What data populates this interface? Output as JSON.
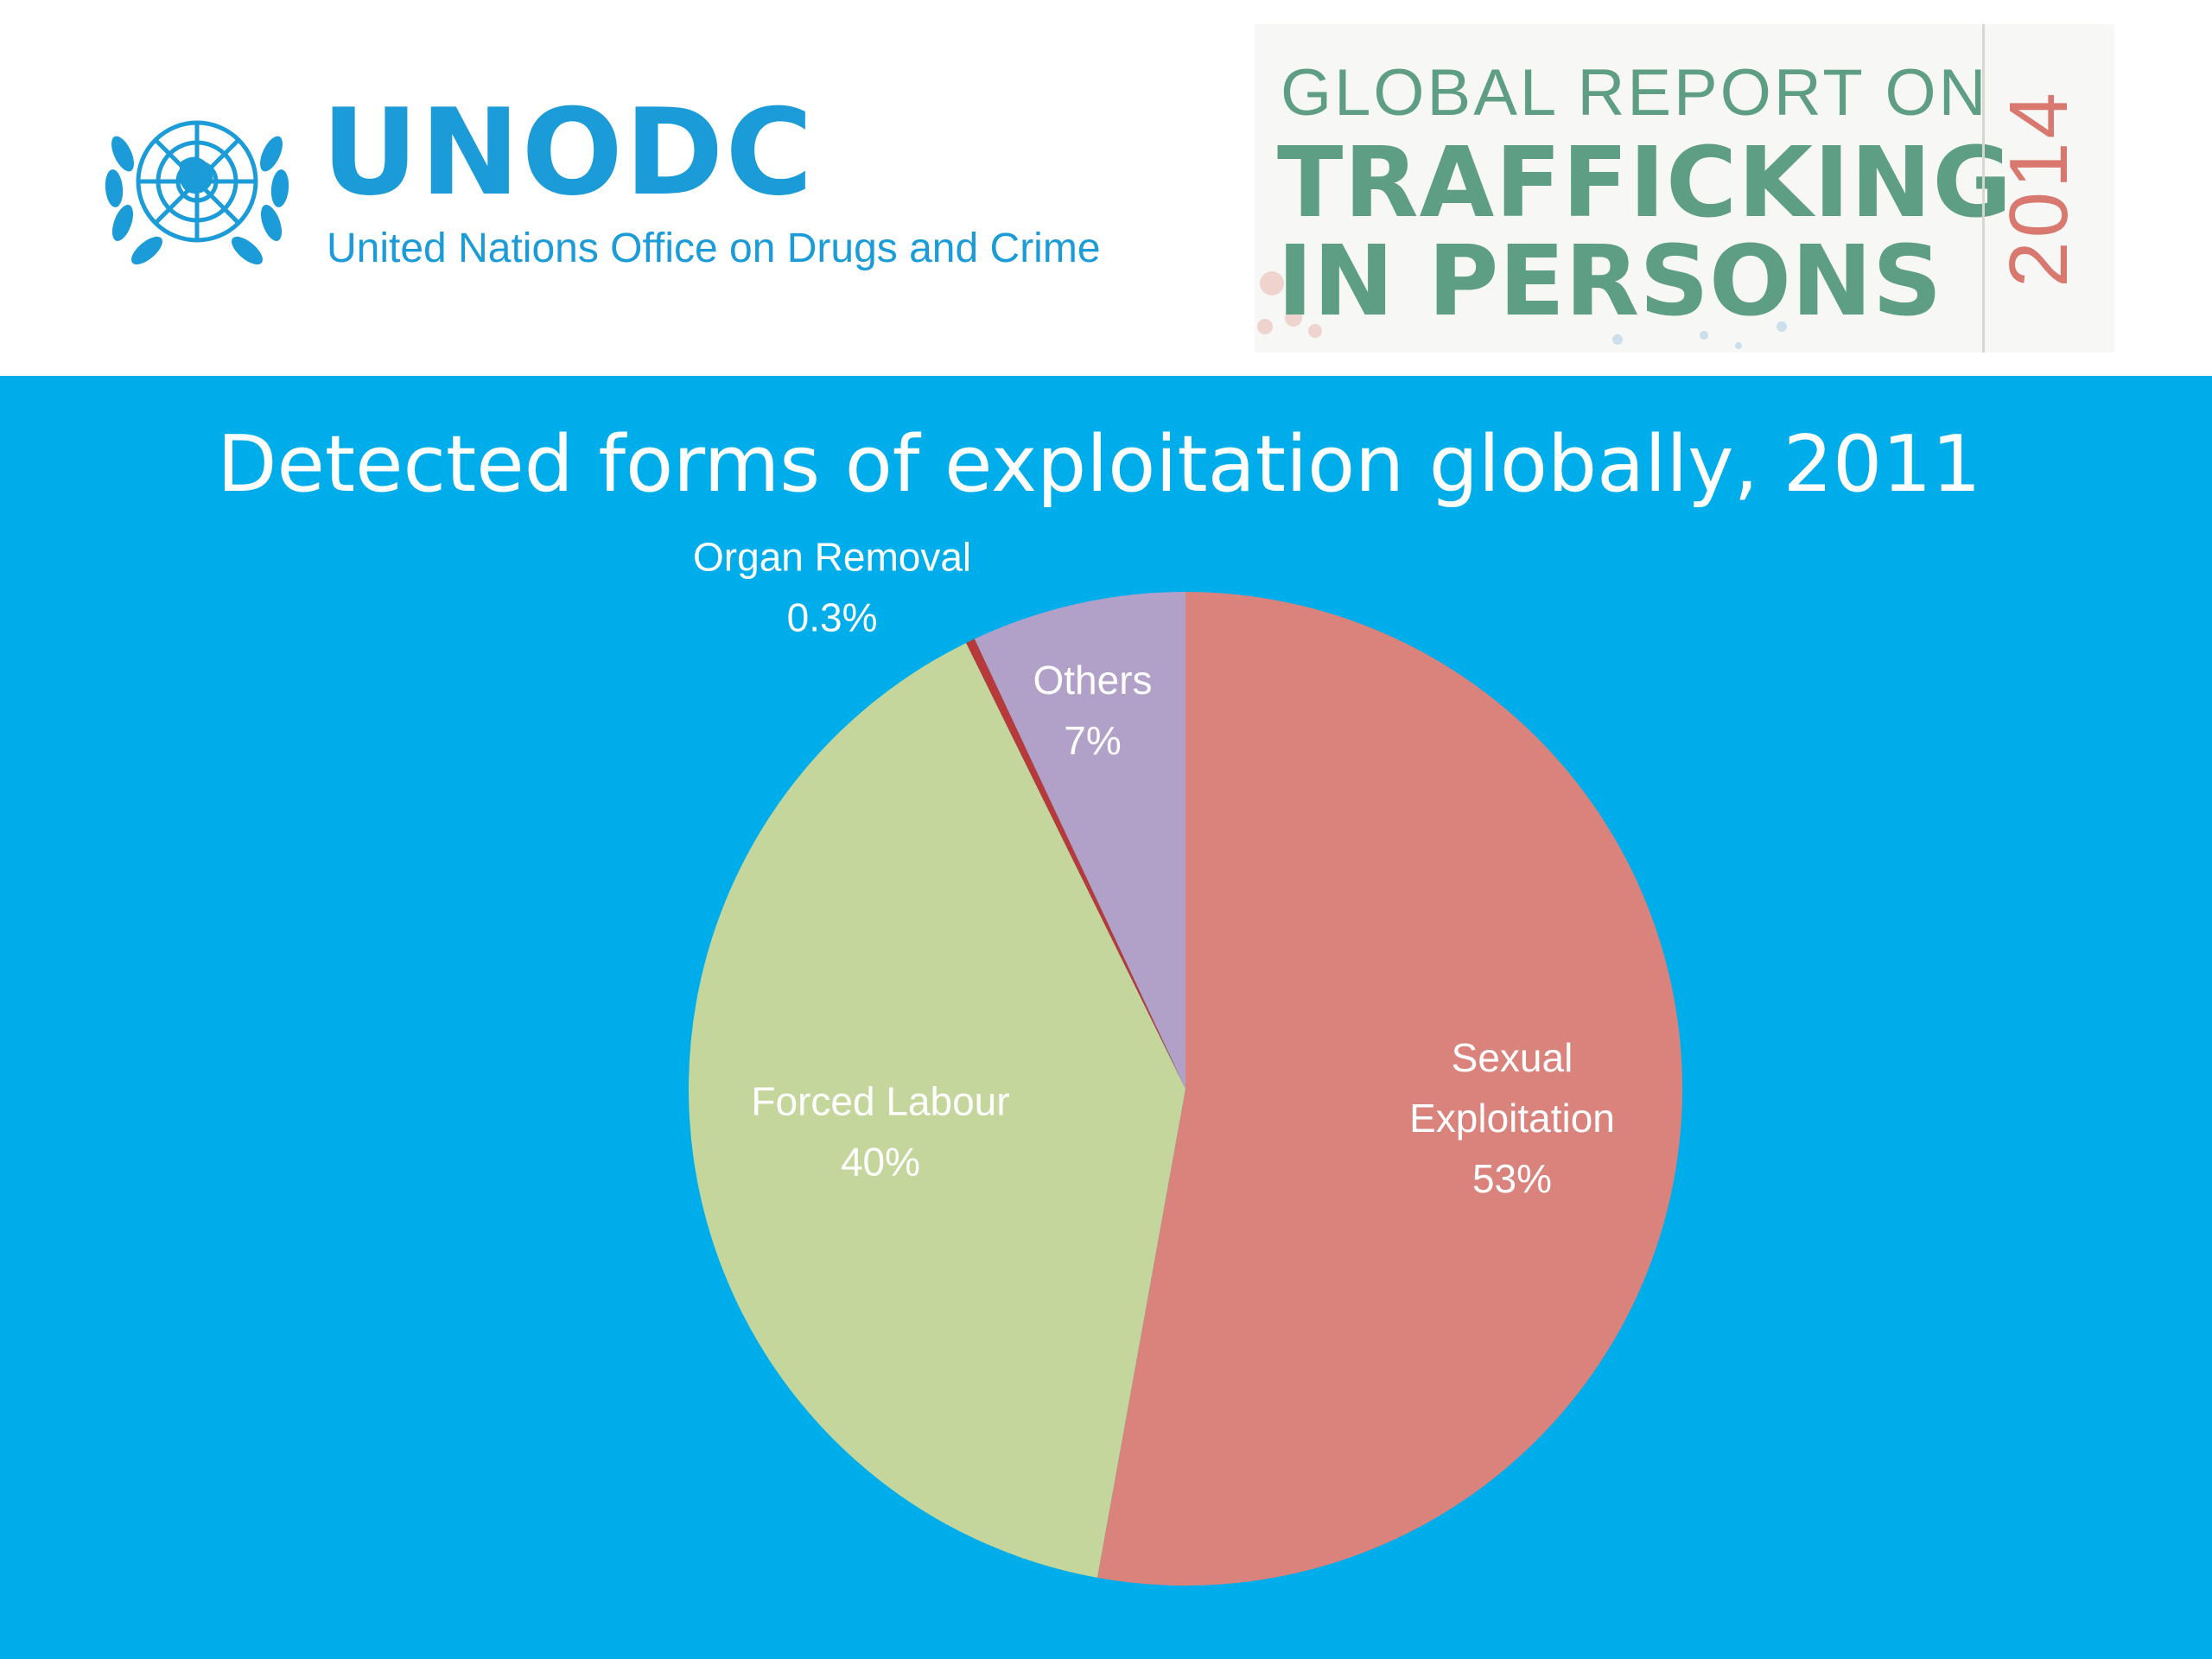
{
  "header": {
    "logo_name": "UNODC",
    "logo_subtitle": "United Nations Office on Drugs and Crime",
    "report_line1": "GLOBAL REPORT ON",
    "report_line2": "TRAFFICKING",
    "report_line3": "IN PERSONS",
    "report_year": "2014"
  },
  "colors": {
    "background": "#00adeb",
    "un_blue": "#1b9bd7",
    "report_green": "#5e9e84",
    "report_year": "#d9786e"
  },
  "chart_data": {
    "type": "pie",
    "title": "Detected forms of exploitation globally, 2011",
    "slices": [
      {
        "name": "Sexual Exploitation",
        "value": 53,
        "value_label": "53%",
        "color": "#d9837c"
      },
      {
        "name": "Forced Labour",
        "value": 40,
        "value_label": "40%",
        "color": "#c4d69c"
      },
      {
        "name": "Organ Removal",
        "value": 0.3,
        "value_label": "0.3%",
        "color": "#b7393a"
      },
      {
        "name": "Others",
        "value": 7,
        "value_label": "7%",
        "color": "#b1a0c7"
      }
    ],
    "start_angle_deg": 90,
    "direction": "clockwise",
    "legend": "none",
    "labels": "on slices"
  }
}
